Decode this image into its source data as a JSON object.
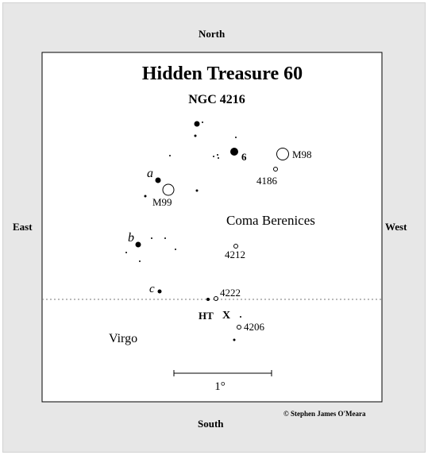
{
  "directions": {
    "north": "North",
    "south": "South",
    "east": "East",
    "west": "West"
  },
  "title": "Hidden Treasure 60",
  "subtitle": "NGC 4216",
  "constellations": {
    "upper": "Coma Berenices",
    "lower": "Virgo"
  },
  "scale_bar_label": "1°",
  "copyright": "© Stephen James O'Meara",
  "galaxy_labels": {
    "m98": "M98",
    "ngc4186": "4186",
    "m99": "M99",
    "ngc4212": "4212",
    "ngc4222": "4222",
    "ngc4206": "4206"
  },
  "star_labels": {
    "six": "6",
    "a": "a",
    "b": "b",
    "c": "c"
  },
  "target": {
    "label": "HT",
    "marker": "X"
  },
  "colors": {
    "frame_bg": "#e7e7e7",
    "chart_bg": "#ffffff",
    "ink": "#000000"
  }
}
